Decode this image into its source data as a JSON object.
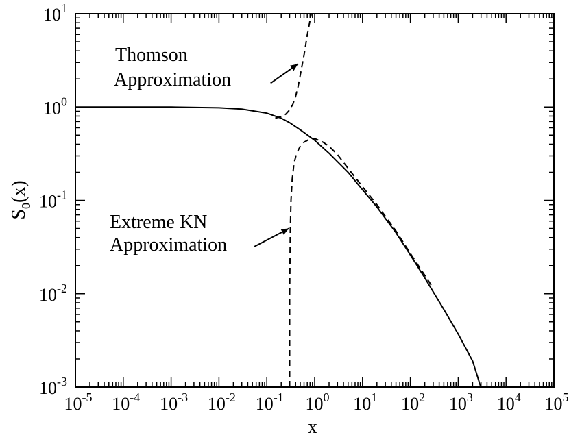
{
  "chart_data": {
    "type": "line",
    "xlabel": "x",
    "ylabel": "S",
    "ylabel_subscript": "0",
    "ylabel_suffix": "(x)",
    "xscale": "log",
    "yscale": "log",
    "xlim": [
      1e-05,
      100000.0
    ],
    "ylim": [
      0.001,
      10
    ],
    "grid": false,
    "x_ticks": [
      {
        "base": "10",
        "exp": "-5"
      },
      {
        "base": "10",
        "exp": "-4"
      },
      {
        "base": "10",
        "exp": "-3"
      },
      {
        "base": "10",
        "exp": "-2"
      },
      {
        "base": "10",
        "exp": "-1"
      },
      {
        "base": "10",
        "exp": "0"
      },
      {
        "base": "10",
        "exp": "1"
      },
      {
        "base": "10",
        "exp": "2"
      },
      {
        "base": "10",
        "exp": "3"
      },
      {
        "base": "10",
        "exp": "4"
      },
      {
        "base": "10",
        "exp": "5"
      }
    ],
    "y_ticks": [
      {
        "base": "10",
        "exp": "-3"
      },
      {
        "base": "10",
        "exp": "-2"
      },
      {
        "base": "10",
        "exp": "-1"
      },
      {
        "base": "10",
        "exp": "0"
      },
      {
        "base": "10",
        "exp": "1"
      }
    ],
    "series": [
      {
        "style": "solid",
        "x": [
          1e-05,
          0.0001,
          0.001,
          0.01,
          0.03,
          0.1,
          0.2,
          0.3,
          0.5,
          1,
          2,
          5,
          10,
          20,
          50,
          100,
          200,
          500,
          1000,
          2000,
          3000
        ],
        "y": [
          1.0,
          1.0,
          1.0,
          0.98,
          0.95,
          0.86,
          0.76,
          0.68,
          0.57,
          0.44,
          0.32,
          0.2,
          0.13,
          0.085,
          0.045,
          0.026,
          0.0148,
          0.0068,
          0.0037,
          0.0019,
          0.00098
        ]
      },
      {
        "style": "dashed",
        "x": [
          0.15,
          0.2,
          0.25,
          0.3,
          0.35,
          0.4,
          0.45,
          0.5,
          0.6,
          0.7,
          0.85
        ],
        "y": [
          0.76,
          0.79,
          0.84,
          0.93,
          1.07,
          1.3,
          1.65,
          2.2,
          3.6,
          5.9,
          10
        ]
      },
      {
        "style": "dashed",
        "x": [
          0.3,
          0.3,
          0.31,
          0.32,
          0.34,
          0.37,
          0.42,
          0.5,
          0.6,
          0.8,
          1,
          1.5,
          2,
          3,
          5,
          10,
          20,
          50,
          100,
          300
        ],
        "y": [
          0.001,
          0.01,
          0.05,
          0.1,
          0.17,
          0.25,
          0.32,
          0.38,
          0.42,
          0.455,
          0.46,
          0.42,
          0.38,
          0.31,
          0.22,
          0.14,
          0.09,
          0.047,
          0.027,
          0.0115
        ]
      }
    ],
    "annotations": [
      {
        "line1": "Thomson",
        "line2": "Approximation",
        "arrow_from": [
          0.12,
          1.8
        ],
        "arrow_to": [
          0.45,
          2.9
        ]
      },
      {
        "line1": "Extreme KN",
        "line2": "Approximation",
        "arrow_from": [
          0.055,
          0.032
        ],
        "arrow_to": [
          0.29,
          0.05
        ]
      }
    ]
  }
}
